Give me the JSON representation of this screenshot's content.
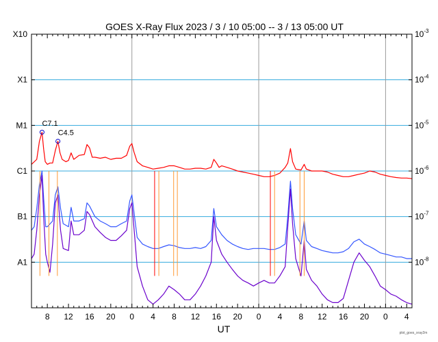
{
  "chart_data": {
    "type": "line",
    "title": "GOES X-Ray Flux   2023  /  3  /  10    05:00 --  3  /  13    05:00    UT",
    "xlabel": "UT",
    "ylabel": "",
    "y_scale": "log",
    "ylim": [
      1e-09,
      0.001
    ],
    "xlim_hours": [
      0,
      72
    ],
    "x_tick_labels": [
      "8",
      "12",
      "16",
      "20",
      "0",
      "4",
      "8",
      "12",
      "16",
      "20",
      "0",
      "4",
      "8",
      "12",
      "16",
      "20",
      "0",
      "4"
    ],
    "x_tick_hours": [
      3,
      7,
      11,
      15,
      19,
      23,
      27,
      31,
      35,
      39,
      43,
      47,
      51,
      55,
      59,
      63,
      67,
      71
    ],
    "day_boundary_hours": [
      19,
      43,
      67
    ],
    "left_axis_labels": [
      {
        "label": "X10",
        "flux": 0.001
      },
      {
        "label": "X1",
        "flux": 0.0001
      },
      {
        "label": "M1",
        "flux": 1e-05
      },
      {
        "label": "C1",
        "flux": 1e-06
      },
      {
        "label": "B1",
        "flux": 1e-07
      },
      {
        "label": "A1",
        "flux": 1e-08
      }
    ],
    "right_axis_labels": [
      {
        "base": "10",
        "exp": "-3",
        "flux": 0.001
      },
      {
        "base": "10",
        "exp": "-4",
        "flux": 0.0001
      },
      {
        "base": "10",
        "exp": "-5",
        "flux": 1e-05
      },
      {
        "base": "10",
        "exp": "-6",
        "flux": 1e-06
      },
      {
        "base": "10",
        "exp": "-7",
        "flux": 1e-07
      },
      {
        "base": "10",
        "exp": "-8",
        "flux": 1e-08
      }
    ],
    "grid": true,
    "series": [
      {
        "color": "#ff0000",
        "points": [
          [
            0,
            1.4e-06
          ],
          [
            1,
            1.8e-06
          ],
          [
            1.5,
            4.5e-06
          ],
          [
            2,
            7.1e-06
          ],
          [
            2.3,
            3e-06
          ],
          [
            2.6,
            1.6e-06
          ],
          [
            3,
            1.4e-06
          ],
          [
            3.5,
            1.5e-06
          ],
          [
            4,
            1.5e-06
          ],
          [
            4.5,
            2.8e-06
          ],
          [
            5,
            4.5e-06
          ],
          [
            5.4,
            2.5e-06
          ],
          [
            5.8,
            1.8e-06
          ],
          [
            6.5,
            1.6e-06
          ],
          [
            7,
            1.7e-06
          ],
          [
            7.5,
            2.5e-06
          ],
          [
            8,
            1.8e-06
          ],
          [
            9,
            2.2e-06
          ],
          [
            10,
            2.3e-06
          ],
          [
            10.5,
            3.8e-06
          ],
          [
            11,
            3.2e-06
          ],
          [
            11.5,
            2e-06
          ],
          [
            12,
            2e-06
          ],
          [
            13,
            1.9e-06
          ],
          [
            14,
            2e-06
          ],
          [
            15,
            1.8e-06
          ],
          [
            16,
            1.9e-06
          ],
          [
            17,
            1.9e-06
          ],
          [
            18,
            2.2e-06
          ],
          [
            18.6,
            3.5e-06
          ],
          [
            19,
            4e-06
          ],
          [
            19.4,
            2.6e-06
          ],
          [
            20,
            1.6e-06
          ],
          [
            21,
            1.3e-06
          ],
          [
            22,
            1.2e-06
          ],
          [
            23,
            1.1e-06
          ],
          [
            24,
            1.15e-06
          ],
          [
            25,
            1.2e-06
          ],
          [
            26,
            1.3e-06
          ],
          [
            27,
            1.3e-06
          ],
          [
            28,
            1.2e-06
          ],
          [
            29,
            1.1e-06
          ],
          [
            30,
            1.1e-06
          ],
          [
            31,
            1.15e-06
          ],
          [
            32,
            1.15e-06
          ],
          [
            33,
            1.1e-06
          ],
          [
            34,
            1.2e-06
          ],
          [
            34.5,
            1.8e-06
          ],
          [
            35,
            1.5e-06
          ],
          [
            35.5,
            1.2e-06
          ],
          [
            36,
            1.3e-06
          ],
          [
            37,
            1.2e-06
          ],
          [
            38,
            1.1e-06
          ],
          [
            39,
            1e-06
          ],
          [
            40,
            9.5e-07
          ],
          [
            41,
            9e-07
          ],
          [
            42,
            8.5e-07
          ],
          [
            43,
            8e-07
          ],
          [
            44,
            7.5e-07
          ],
          [
            45,
            7.5e-07
          ],
          [
            46,
            8e-07
          ],
          [
            47,
            9e-07
          ],
          [
            48,
            1.2e-06
          ],
          [
            48.5,
            1.5e-06
          ],
          [
            49,
            3.1e-06
          ],
          [
            49.4,
            1.6e-06
          ],
          [
            50,
            1.1e-06
          ],
          [
            51,
            1.05e-06
          ],
          [
            51.6,
            1.4e-06
          ],
          [
            52,
            1.1e-06
          ],
          [
            53,
            1e-06
          ],
          [
            54,
            1e-06
          ],
          [
            55,
            1e-06
          ],
          [
            56,
            9.5e-07
          ],
          [
            57,
            8.5e-07
          ],
          [
            58,
            8e-07
          ],
          [
            59,
            7.5e-07
          ],
          [
            60,
            7.5e-07
          ],
          [
            61,
            8e-07
          ],
          [
            62,
            8.5e-07
          ],
          [
            63,
            9e-07
          ],
          [
            64,
            1e-06
          ],
          [
            65,
            9.5e-07
          ],
          [
            66,
            8.5e-07
          ],
          [
            67,
            8e-07
          ],
          [
            68,
            7.5e-07
          ],
          [
            69,
            7.2e-07
          ],
          [
            70,
            7e-07
          ],
          [
            71,
            7e-07
          ],
          [
            72,
            6.8e-07
          ]
        ]
      },
      {
        "color": "#3355ff",
        "points": [
          [
            0,
            5e-08
          ],
          [
            0.5,
            6e-08
          ],
          [
            1,
            1.5e-07
          ],
          [
            1.5,
            5e-07
          ],
          [
            2,
            1e-06
          ],
          [
            2.3,
            2.5e-07
          ],
          [
            2.7,
            6e-08
          ],
          [
            3,
            6e-08
          ],
          [
            4,
            8e-08
          ],
          [
            4.5,
            3e-07
          ],
          [
            5,
            4.5e-07
          ],
          [
            5.5,
            1.5e-07
          ],
          [
            6,
            7e-08
          ],
          [
            7,
            6e-08
          ],
          [
            7.5,
            1.6e-07
          ],
          [
            8,
            8e-08
          ],
          [
            9,
            8e-08
          ],
          [
            10,
            9e-08
          ],
          [
            10.5,
            2e-07
          ],
          [
            11,
            1.7e-07
          ],
          [
            12,
            1e-07
          ],
          [
            13,
            8e-08
          ],
          [
            14,
            7e-08
          ],
          [
            15,
            6e-08
          ],
          [
            16,
            6e-08
          ],
          [
            17,
            7e-08
          ],
          [
            18,
            8e-08
          ],
          [
            18.6,
            2.2e-07
          ],
          [
            19,
            3e-07
          ],
          [
            19.5,
            1e-07
          ],
          [
            20,
            3.5e-08
          ],
          [
            21,
            2.5e-08
          ],
          [
            22,
            2.2e-08
          ],
          [
            23,
            2e-08
          ],
          [
            24,
            2e-08
          ],
          [
            25,
            2.2e-08
          ],
          [
            26,
            2.4e-08
          ],
          [
            27,
            2.3e-08
          ],
          [
            28,
            2.1e-08
          ],
          [
            29,
            2e-08
          ],
          [
            30,
            2e-08
          ],
          [
            31,
            2.1e-08
          ],
          [
            32,
            2e-08
          ],
          [
            33,
            2.2e-08
          ],
          [
            34,
            3e-08
          ],
          [
            34.5,
            1.5e-07
          ],
          [
            35,
            6e-08
          ],
          [
            36,
            4e-08
          ],
          [
            37,
            3e-08
          ],
          [
            38,
            2.5e-08
          ],
          [
            39,
            2.2e-08
          ],
          [
            40,
            2e-08
          ],
          [
            41,
            1.9e-08
          ],
          [
            42,
            2e-08
          ],
          [
            43,
            2e-08
          ],
          [
            44,
            2e-08
          ],
          [
            45,
            1.9e-08
          ],
          [
            46,
            1.9e-08
          ],
          [
            47,
            2.1e-08
          ],
          [
            48,
            2.5e-08
          ],
          [
            48.5,
            1e-07
          ],
          [
            49,
            6e-07
          ],
          [
            49.4,
            1.5e-07
          ],
          [
            50,
            4e-08
          ],
          [
            51,
            2.5e-08
          ],
          [
            51.6,
            8e-08
          ],
          [
            52,
            3e-08
          ],
          [
            53,
            2.2e-08
          ],
          [
            54,
            2e-08
          ],
          [
            55,
            1.8e-08
          ],
          [
            56,
            1.7e-08
          ],
          [
            57,
            1.6e-08
          ],
          [
            58,
            1.6e-08
          ],
          [
            59,
            1.7e-08
          ],
          [
            60,
            2e-08
          ],
          [
            61,
            2.8e-08
          ],
          [
            62,
            3.2e-08
          ],
          [
            63,
            2.5e-08
          ],
          [
            64,
            2.2e-08
          ],
          [
            65,
            1.9e-08
          ],
          [
            66,
            1.6e-08
          ],
          [
            67,
            1.5e-08
          ],
          [
            68,
            1.4e-08
          ],
          [
            69,
            1.3e-08
          ],
          [
            70,
            1.3e-08
          ],
          [
            71,
            1.2e-08
          ],
          [
            72,
            1.2e-08
          ]
        ]
      },
      {
        "color": "#6a00cc",
        "points": [
          [
            0,
            1.2e-08
          ],
          [
            0.5,
            1.5e-08
          ],
          [
            1,
            5e-08
          ],
          [
            1.5,
            3e-07
          ],
          [
            2,
            8e-07
          ],
          [
            2.3,
            1e-07
          ],
          [
            2.7,
            1.5e-08
          ],
          [
            3,
            1e-08
          ],
          [
            3.5,
            6e-09
          ],
          [
            4,
            2.5e-08
          ],
          [
            4.5,
            2e-07
          ],
          [
            5,
            3e-07
          ],
          [
            5.5,
            5e-08
          ],
          [
            6,
            2e-08
          ],
          [
            7,
            1.8e-08
          ],
          [
            7.5,
            8e-08
          ],
          [
            8,
            4e-08
          ],
          [
            9,
            4e-08
          ],
          [
            10,
            5e-08
          ],
          [
            10.5,
            1.3e-07
          ],
          [
            11,
            1.1e-07
          ],
          [
            12,
            6e-08
          ],
          [
            13,
            4.5e-08
          ],
          [
            14,
            3.5e-08
          ],
          [
            15,
            3e-08
          ],
          [
            16,
            3e-08
          ],
          [
            17,
            3.8e-08
          ],
          [
            18,
            5e-08
          ],
          [
            18.6,
            1.5e-07
          ],
          [
            19,
            2e-07
          ],
          [
            19.5,
            4e-08
          ],
          [
            20,
            8e-09
          ],
          [
            21,
            3e-09
          ],
          [
            22,
            1.5e-09
          ],
          [
            23,
            1.2e-09
          ],
          [
            24,
            1.5e-09
          ],
          [
            25,
            2e-09
          ],
          [
            26,
            3e-09
          ],
          [
            27,
            2.5e-09
          ],
          [
            28,
            2e-09
          ],
          [
            29,
            1.5e-09
          ],
          [
            30,
            1.5e-09
          ],
          [
            31,
            2e-09
          ],
          [
            32,
            3e-09
          ],
          [
            33,
            5e-09
          ],
          [
            34,
            1e-08
          ],
          [
            34.5,
            1e-07
          ],
          [
            35,
            3e-08
          ],
          [
            36,
            1.5e-08
          ],
          [
            37,
            1e-08
          ],
          [
            38,
            7e-09
          ],
          [
            39,
            5e-09
          ],
          [
            40,
            4e-09
          ],
          [
            41,
            3.5e-09
          ],
          [
            42,
            3e-09
          ],
          [
            43,
            3.5e-09
          ],
          [
            44,
            4e-09
          ],
          [
            45,
            3.5e-09
          ],
          [
            46,
            3.5e-09
          ],
          [
            47,
            5e-09
          ],
          [
            48,
            8e-09
          ],
          [
            48.5,
            6e-08
          ],
          [
            49,
            4e-07
          ],
          [
            49.4,
            7e-08
          ],
          [
            50,
            1.2e-08
          ],
          [
            51,
            5e-09
          ],
          [
            51.6,
            3e-08
          ],
          [
            52,
            7e-09
          ],
          [
            53,
            4e-09
          ],
          [
            54,
            3e-09
          ],
          [
            55,
            2e-09
          ],
          [
            56,
            1.5e-09
          ],
          [
            57,
            1.3e-09
          ],
          [
            58,
            1.3e-09
          ],
          [
            59,
            1.6e-09
          ],
          [
            60,
            4e-09
          ],
          [
            61,
            1e-08
          ],
          [
            62,
            1.6e-08
          ],
          [
            63,
            1.1e-08
          ],
          [
            64,
            8e-09
          ],
          [
            65,
            5e-09
          ],
          [
            66,
            3e-09
          ],
          [
            67,
            2.5e-09
          ],
          [
            68,
            2e-09
          ],
          [
            69,
            1.8e-09
          ],
          [
            70,
            1.5e-09
          ],
          [
            71,
            1.3e-09
          ],
          [
            72,
            1.2e-09
          ]
        ]
      }
    ],
    "dropouts": [
      {
        "hour": 1.6,
        "color": "#ff9933"
      },
      {
        "hour": 3.3,
        "color": "#ff9933"
      },
      {
        "hour": 4.9,
        "color": "#ff9933"
      },
      {
        "hour": 23.3,
        "color": "#ff0000"
      },
      {
        "hour": 24.1,
        "color": "#ff9933"
      },
      {
        "hour": 26.9,
        "color": "#ff9933"
      },
      {
        "hour": 27.6,
        "color": "#ff9933"
      },
      {
        "hour": 45.2,
        "color": "#ff0000"
      },
      {
        "hour": 46.0,
        "color": "#ff9933"
      },
      {
        "hour": 50.8,
        "color": "#ff9933"
      },
      {
        "hour": 51.6,
        "color": "#ff9933"
      }
    ],
    "annotations": [
      {
        "text": "C7.1",
        "hour": 2.0,
        "flux": 7.1e-06
      },
      {
        "text": "C4.5",
        "hour": 5.0,
        "flux": 4.5e-06
      }
    ],
    "footer_note": "plot_goes_xray2m"
  },
  "colors": {
    "grid_cyan": "#33aadd",
    "day_line": "#999999",
    "axis": "#000000",
    "marker": "#0000cc"
  }
}
